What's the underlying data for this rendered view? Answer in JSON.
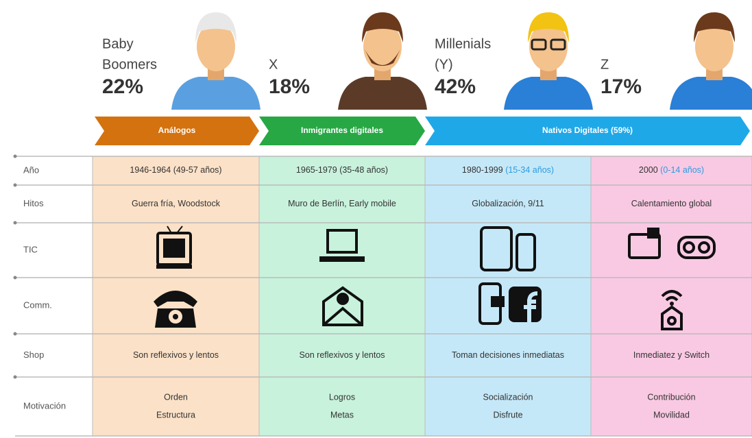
{
  "generations": [
    {
      "name": [
        "Baby",
        "Boomers"
      ],
      "percent": "22%",
      "years": "1946-1964",
      "ages": "(49-57 años)",
      "milestones": "Guerra fría, Woodstock",
      "shop": "Son reflexivos y lentos",
      "motivation": [
        "Orden",
        "Estructura"
      ]
    },
    {
      "name": [
        "X"
      ],
      "percent": "18%",
      "years": "1965-1979",
      "ages": "(35-48 años)",
      "milestones": "Muro de Berlín, Early mobile",
      "shop": "Son reflexivos y lentos",
      "motivation": [
        "Logros",
        "Metas"
      ]
    },
    {
      "name": [
        "Millenials",
        "(Y)"
      ],
      "percent": "42%",
      "years": "1980-1999",
      "ages": "(15-34 años)",
      "milestones": "Globalización, 9/11",
      "shop": "Toman decisiones inmediatas",
      "motivation": [
        "Socialización",
        "Disfrute"
      ]
    },
    {
      "name": [
        "Z"
      ],
      "percent": "17%",
      "years": "2000",
      "ages": "(0-14 años)",
      "milestones": "Calentamiento global",
      "shop": "Inmediatez y Switch",
      "motivation": [
        "Contribución",
        "Movilidad"
      ]
    }
  ],
  "arrows": [
    "Análogos",
    "Inmigrantes digitales",
    "Nativos Digitales (59%)"
  ],
  "row_labels": [
    "Año",
    "Hitos",
    "TIC",
    "Comm.",
    "Shop",
    "Motivación"
  ]
}
